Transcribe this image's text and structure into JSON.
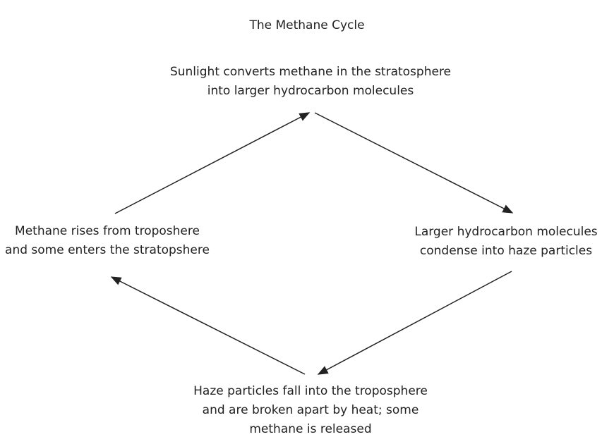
{
  "title": "The Methane Cycle",
  "nodes": [
    {
      "lines": [
        "Sunlight converts methane in the stratosphere",
        "into larger hydrocarbon molecules"
      ]
    },
    {
      "lines": [
        "Larger hydrocarbon molecules",
        "condense into haze particles"
      ]
    },
    {
      "lines": [
        "Haze particles fall into the troposphere",
        "and are broken apart by heat; some",
        "methane is released"
      ]
    },
    {
      "lines": [
        "Methane rises from troposhere",
        "and some enters the stratopshere"
      ]
    }
  ]
}
